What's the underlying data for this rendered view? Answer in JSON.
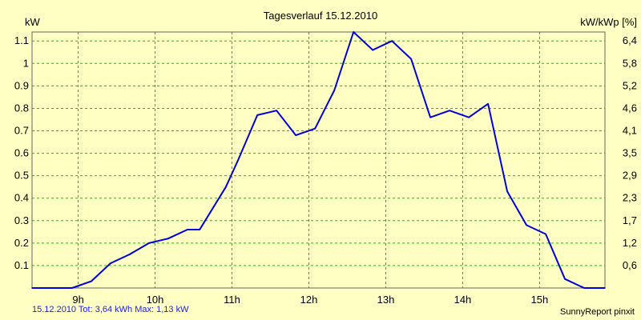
{
  "chart_data": {
    "type": "line",
    "title": "Tagesverlauf 15.12.2010",
    "ylabel_left": "kW",
    "ylabel_right": "kW/kWp [%]",
    "x_ticks": [
      "9h",
      "10h",
      "11h",
      "12h",
      "13h",
      "14h",
      "15h"
    ],
    "x_tick_hours": [
      9,
      10,
      11,
      12,
      13,
      14,
      15
    ],
    "xlim": [
      8.4,
      15.85
    ],
    "y_ticks_left": [
      "0.1",
      "0.2",
      "0.3",
      "0.4",
      "0.5",
      "0.6",
      "0.7",
      "0.8",
      "0.9",
      "1",
      "1.1"
    ],
    "y_tick_values_left": [
      0.1,
      0.2,
      0.3,
      0.4,
      0.5,
      0.6,
      0.7,
      0.8,
      0.9,
      1.0,
      1.1
    ],
    "y_ticks_right": [
      "0,6",
      "1,2",
      "1,7",
      "2,3",
      "2,9",
      "3,5",
      "4,1",
      "4,6",
      "5,2",
      "5,8",
      "6,4"
    ],
    "ylim": [
      0,
      1.14
    ],
    "grid": true,
    "series": [
      {
        "color": "#0000e0",
        "x": [
          8.4,
          8.92,
          9.17,
          9.42,
          9.67,
          9.92,
          10.17,
          10.42,
          10.58,
          10.92,
          11.08,
          11.33,
          11.58,
          11.83,
          12.08,
          12.33,
          12.58,
          12.83,
          13.08,
          13.33,
          13.58,
          13.83,
          14.08,
          14.33,
          14.58,
          14.83,
          15.08,
          15.33,
          15.58,
          15.85
        ],
        "values": [
          0.0,
          0.0,
          0.03,
          0.11,
          0.15,
          0.2,
          0.22,
          0.26,
          0.26,
          0.45,
          0.57,
          0.77,
          0.79,
          0.68,
          0.71,
          0.88,
          1.14,
          1.06,
          1.1,
          1.02,
          0.76,
          0.79,
          0.76,
          0.82,
          0.43,
          0.28,
          0.24,
          0.04,
          0.0,
          0.0
        ]
      }
    ]
  },
  "footer": {
    "left_text": "15.12.2010 Tot: 3,64 kWh Max: 1,13 kW",
    "right_text": "SunnyReport pinxit"
  },
  "colors": {
    "background": "#ffffc4",
    "grid": "#00cc00",
    "line": "#0000e0",
    "footer_left": "#1a1aff"
  }
}
